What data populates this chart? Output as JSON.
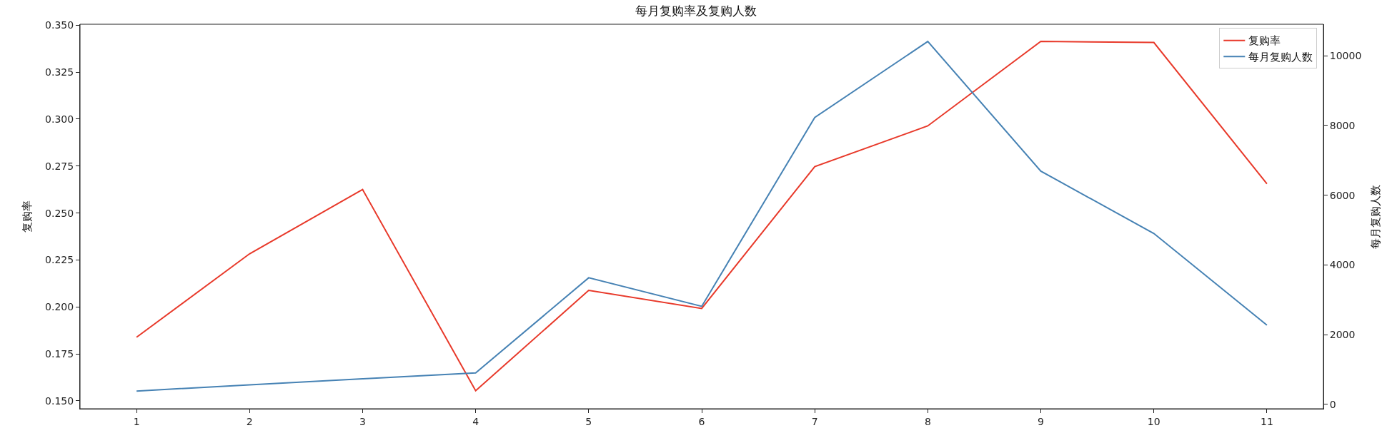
{
  "chart_data": {
    "type": "line",
    "title": "每月复购率及复购人数",
    "ylabel": "复购率",
    "y2label": "每月复购人数",
    "x": [
      1,
      2,
      3,
      4,
      5,
      6,
      7,
      8,
      9,
      10,
      11
    ],
    "series": [
      {
        "name": "复购率",
        "color": "#e8392a",
        "values": [
          0.1839,
          0.2283,
          0.2625,
          0.1554,
          0.2088,
          0.1992,
          0.2747,
          0.2964,
          0.3414,
          0.3408,
          0.2656
        ]
      },
      {
        "name": "每月复购人数",
        "color": "#4682b4",
        "axis": "y2",
        "values": [
          380,
          560,
          730,
          900,
          3630,
          2810,
          8230,
          10410,
          6690,
          4900,
          2270
        ]
      }
    ],
    "xlim": [
      0.5,
      11.5
    ],
    "xticks": [
      1,
      2,
      3,
      4,
      5,
      6,
      7,
      8,
      9,
      10,
      11
    ],
    "ylim": [
      0.1458,
      0.3505
    ],
    "yticks": [
      {
        "value": 0.15,
        "label": "0.150"
      },
      {
        "value": 0.175,
        "label": "0.175"
      },
      {
        "value": 0.2,
        "label": "0.200"
      },
      {
        "value": 0.225,
        "label": "0.225"
      },
      {
        "value": 0.25,
        "label": "0.250"
      },
      {
        "value": 0.275,
        "label": "0.275"
      },
      {
        "value": 0.3,
        "label": "0.300"
      },
      {
        "value": 0.325,
        "label": "0.325"
      },
      {
        "value": 0.35,
        "label": "0.350"
      }
    ],
    "y2lim": [
      -128,
      10904
    ],
    "y2ticks": [
      0,
      2000,
      4000,
      6000,
      8000,
      10000
    ],
    "legend": "top right",
    "line_style": "solid"
  }
}
